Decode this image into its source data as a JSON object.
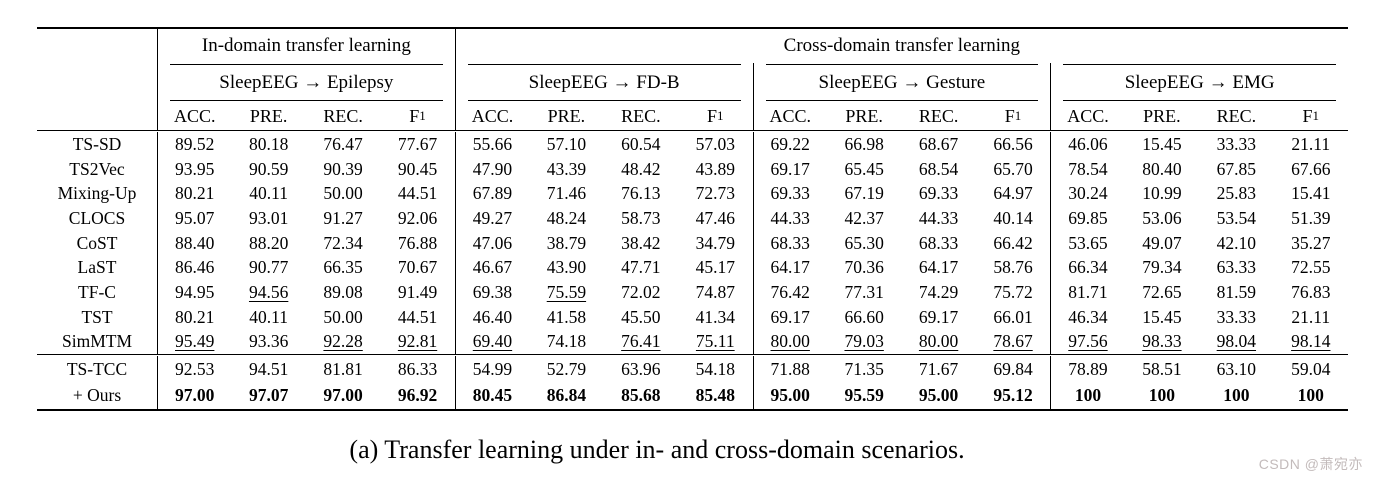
{
  "page": {
    "background": "#ffffff",
    "text_color": "#000000",
    "watermark_color": "#c3bbbb"
  },
  "table": {
    "domain_headers": [
      {
        "label": "In-domain transfer learning",
        "span_groups": 1
      },
      {
        "label": "Cross-domain transfer learning",
        "span_groups": 3
      }
    ],
    "scenario_headers": [
      "SleepEEG → Epilepsy",
      "SleepEEG → FD-B",
      "SleepEEG → Gesture",
      "SleepEEG → EMG"
    ],
    "metric_headers": [
      {
        "label": "ACC."
      },
      {
        "label": "PRE."
      },
      {
        "label": "REC."
      },
      {
        "label": "F",
        "sub": "1"
      }
    ],
    "baseline_rows": [
      {
        "method": "TS-SD",
        "values": [
          "89.52",
          "80.18",
          "76.47",
          "77.67",
          "55.66",
          "57.10",
          "60.54",
          "57.03",
          "69.22",
          "66.98",
          "68.67",
          "66.56",
          "46.06",
          "15.45",
          "33.33",
          "21.11"
        ]
      },
      {
        "method": "TS2Vec",
        "values": [
          "93.95",
          "90.59",
          "90.39",
          "90.45",
          "47.90",
          "43.39",
          "48.42",
          "43.89",
          "69.17",
          "65.45",
          "68.54",
          "65.70",
          "78.54",
          "80.40",
          "67.85",
          "67.66"
        ]
      },
      {
        "method": "Mixing-Up",
        "values": [
          "80.21",
          "40.11",
          "50.00",
          "44.51",
          "67.89",
          "71.46",
          "76.13",
          "72.73",
          "69.33",
          "67.19",
          "69.33",
          "64.97",
          "30.24",
          "10.99",
          "25.83",
          "15.41"
        ]
      },
      {
        "method": "CLOCS",
        "values": [
          "95.07",
          "93.01",
          "91.27",
          "92.06",
          "49.27",
          "48.24",
          "58.73",
          "47.46",
          "44.33",
          "42.37",
          "44.33",
          "40.14",
          "69.85",
          "53.06",
          "53.54",
          "51.39"
        ]
      },
      {
        "method": "CoST",
        "values": [
          "88.40",
          "88.20",
          "72.34",
          "76.88",
          "47.06",
          "38.79",
          "38.42",
          "34.79",
          "68.33",
          "65.30",
          "68.33",
          "66.42",
          "53.65",
          "49.07",
          "42.10",
          "35.27"
        ]
      },
      {
        "method": "LaST",
        "values": [
          "86.46",
          "90.77",
          "66.35",
          "70.67",
          "46.67",
          "43.90",
          "47.71",
          "45.17",
          "64.17",
          "70.36",
          "64.17",
          "58.76",
          "66.34",
          "79.34",
          "63.33",
          "72.55"
        ]
      },
      {
        "method": "TF-C",
        "values": [
          "94.95",
          "94.56",
          "89.08",
          "91.49",
          "69.38",
          "75.59",
          "72.02",
          "74.87",
          "76.42",
          "77.31",
          "74.29",
          "75.72",
          "81.71",
          "72.65",
          "81.59",
          "76.83"
        ],
        "underline": [
          1,
          5
        ]
      },
      {
        "method": "TST",
        "values": [
          "80.21",
          "40.11",
          "50.00",
          "44.51",
          "46.40",
          "41.58",
          "45.50",
          "41.34",
          "69.17",
          "66.60",
          "69.17",
          "66.01",
          "46.34",
          "15.45",
          "33.33",
          "21.11"
        ]
      },
      {
        "method": "SimMTM",
        "values": [
          "95.49",
          "93.36",
          "92.28",
          "92.81",
          "69.40",
          "74.18",
          "76.41",
          "75.11",
          "80.00",
          "79.03",
          "80.00",
          "78.67",
          "97.56",
          "98.33",
          "98.04",
          "98.14"
        ],
        "underline": [
          0,
          2,
          3,
          4,
          6,
          7,
          8,
          9,
          10,
          11,
          12,
          13,
          14,
          15
        ]
      }
    ],
    "final_rows": [
      {
        "method": "TS-TCC",
        "values": [
          "92.53",
          "94.51",
          "81.81",
          "86.33",
          "54.99",
          "52.79",
          "63.96",
          "54.18",
          "71.88",
          "71.35",
          "71.67",
          "69.84",
          "78.89",
          "58.51",
          "63.10",
          "59.04"
        ]
      },
      {
        "method": "+ Ours",
        "bold": true,
        "values": [
          "97.00",
          "97.07",
          "97.00",
          "96.92",
          "80.45",
          "86.84",
          "85.68",
          "85.48",
          "95.00",
          "95.59",
          "95.00",
          "95.12",
          "100",
          "100",
          "100",
          "100"
        ]
      }
    ]
  },
  "caption": "(a) Transfer learning under in- and cross-domain scenarios.",
  "watermark": "CSDN @萧宛亦"
}
